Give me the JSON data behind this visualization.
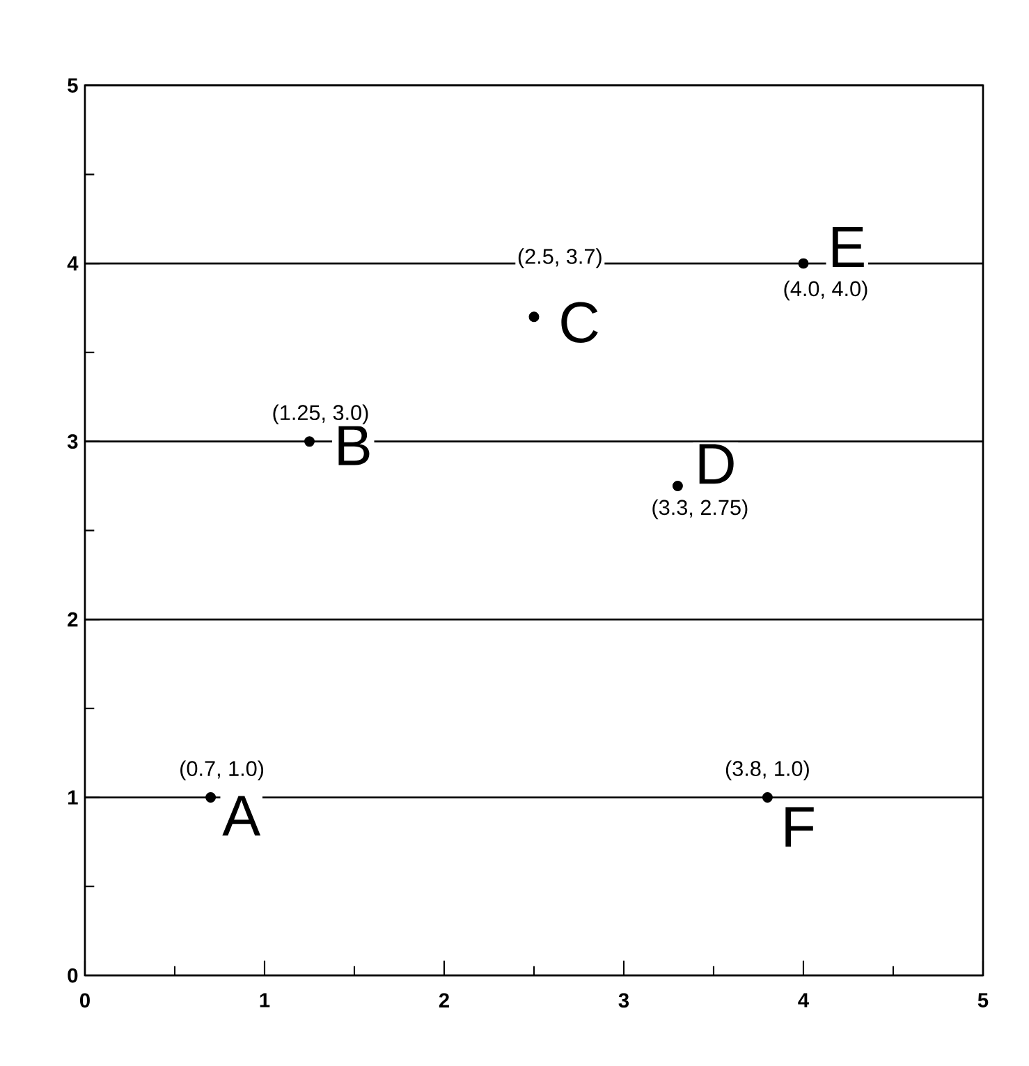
{
  "chart_data": {
    "type": "scatter",
    "x": [
      0.7,
      1.25,
      2.5,
      3.3,
      4.0,
      3.8
    ],
    "marker": "circle",
    "grid": "y",
    "series": [
      {
        "color": "#000000",
        "values": [
          1.0,
          3.0,
          3.7,
          2.75,
          4.0,
          1.0
        ]
      }
    ],
    "xlim": [
      0,
      5
    ],
    "ylim": [
      0,
      5
    ],
    "xticks": [
      0,
      1,
      2,
      3,
      4,
      5
    ],
    "yticks": [
      0,
      1,
      2,
      3,
      4,
      5
    ],
    "annotations": [
      {
        "text": "A",
        "x": 0.7,
        "y": 1.0
      },
      {
        "text": "(0.7, 1.0)",
        "x": 0.7,
        "y": 1.0
      },
      {
        "text": "B",
        "x": 1.25,
        "y": 3.0
      },
      {
        "text": "(1.25, 3.0)",
        "x": 1.25,
        "y": 3.0
      },
      {
        "text": "C",
        "x": 2.5,
        "y": 3.7
      },
      {
        "text": "(2.5, 3.7)",
        "x": 2.5,
        "y": 3.7
      },
      {
        "text": "D",
        "x": 3.3,
        "y": 2.75
      },
      {
        "text": "(3.3, 2.75)",
        "x": 3.3,
        "y": 2.75
      },
      {
        "text": "E",
        "x": 4.0,
        "y": 4.0
      },
      {
        "text": "(4.0, 4.0)",
        "x": 4.0,
        "y": 4.0
      },
      {
        "text": "F",
        "x": 3.8,
        "y": 1.0
      },
      {
        "text": "(3.8, 1.0)",
        "x": 3.8,
        "y": 1.0
      }
    ]
  }
}
